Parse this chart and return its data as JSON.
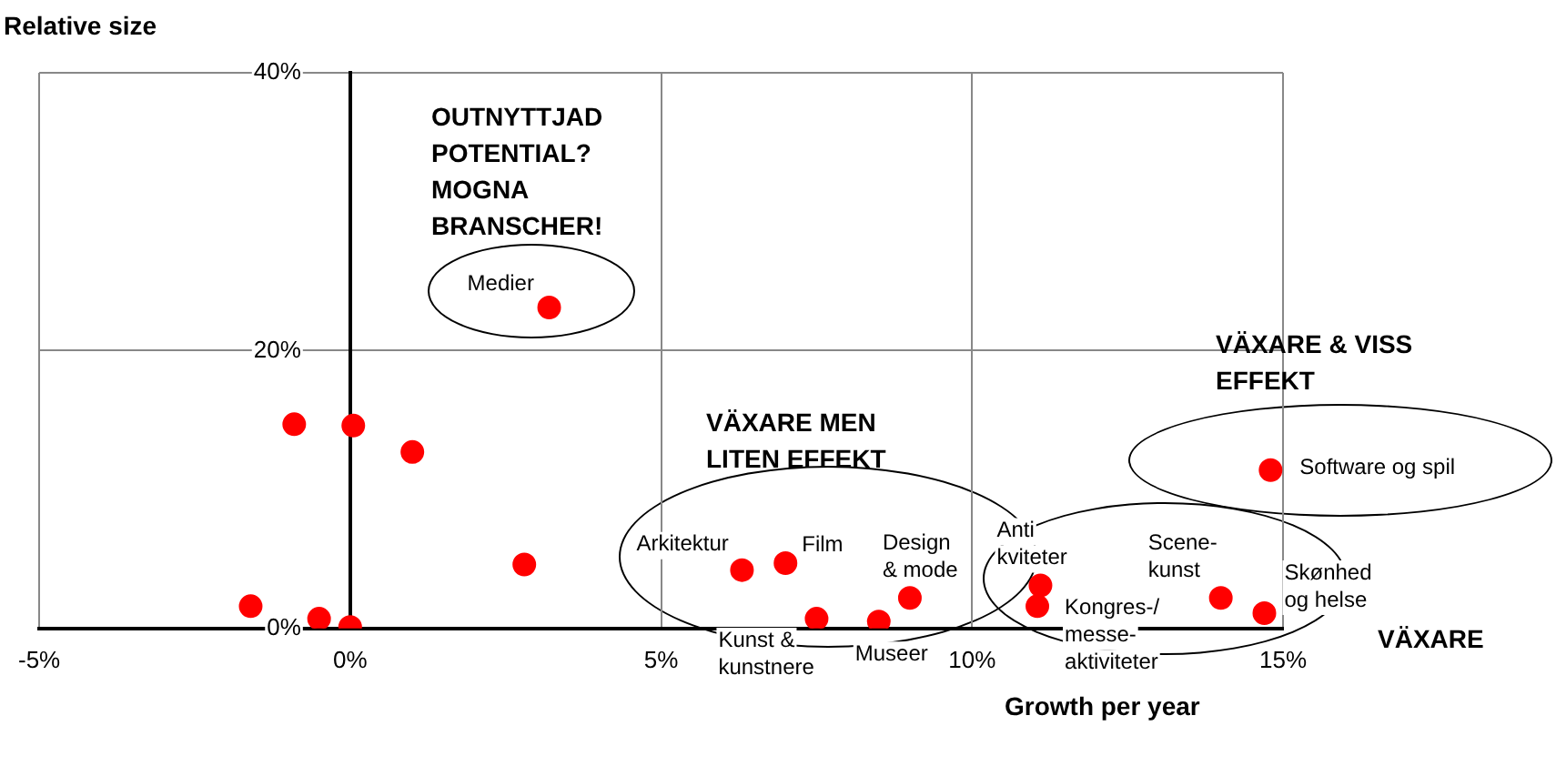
{
  "chart_data": {
    "type": "scatter",
    "xlabel": "Growth per year",
    "ylabel": "Relative size",
    "x": [
      3.2,
      -0.9,
      0.05,
      1.0,
      2.8,
      -1.6,
      -0.5,
      0,
      6.3,
      7.0,
      7.5,
      8.5,
      9.0,
      11.1,
      11.05,
      14.0,
      14.7,
      14.8
    ],
    "values": [
      23.1,
      14.7,
      14.6,
      12.7,
      4.6,
      1.6,
      0.7,
      0.1,
      4.2,
      4.7,
      0.7,
      0.5,
      2.2,
      3.1,
      1.6,
      2.2,
      1.1,
      11.4
    ],
    "color": "#ff0000",
    "marker": "circle",
    "grid": true,
    "legend": false,
    "xlim": [
      -5,
      15
    ],
    "ylim": [
      0,
      40
    ],
    "xticks": [
      {
        "value": -5,
        "label": "-5%"
      },
      {
        "value": 0,
        "label": "0%"
      },
      {
        "value": 5,
        "label": "5%"
      },
      {
        "value": 10,
        "label": "10%"
      },
      {
        "value": 15,
        "label": "15%"
      }
    ],
    "yticks": [
      {
        "value": 0,
        "label": "0%"
      },
      {
        "value": 20,
        "label": "20%"
      },
      {
        "value": 40,
        "label": "40%"
      }
    ],
    "annotations": [
      "OUTNYTTJAD\nPOTENTIAL?\nMOGNA\nBRANSCHER!",
      "VÄXARE MEN\nLITEN EFFEKT",
      "VÄXARE & VISS\nEFFEKT",
      "VÄXARE",
      {
        "text": "Medier",
        "x": 3.2,
        "y": 23.1
      },
      {
        "text": "Arkitektur",
        "x": 6.3,
        "y": 4.2
      },
      {
        "text": "Film",
        "x": 7.0,
        "y": 4.7
      },
      {
        "text": "Kunst &\nkunstnere",
        "x": 7.5,
        "y": 0.7
      },
      {
        "text": "Museer",
        "x": 8.5,
        "y": 0.5
      },
      {
        "text": "Design\n& mode",
        "x": 9.0,
        "y": 2.2
      },
      {
        "text": "Anti\nkviteter",
        "x": 11.1,
        "y": 3.1
      },
      {
        "text": "Kongres-/\nmesse-\naktiviteter",
        "x": 11.05,
        "y": 1.6
      },
      {
        "text": "Scene-\nkunst",
        "x": 14.0,
        "y": 2.2
      },
      {
        "text": "Skønhed\nog helse",
        "x": 14.7,
        "y": 1.1
      },
      {
        "text": "Software og spil",
        "x": 14.8,
        "y": 11.4
      }
    ]
  }
}
